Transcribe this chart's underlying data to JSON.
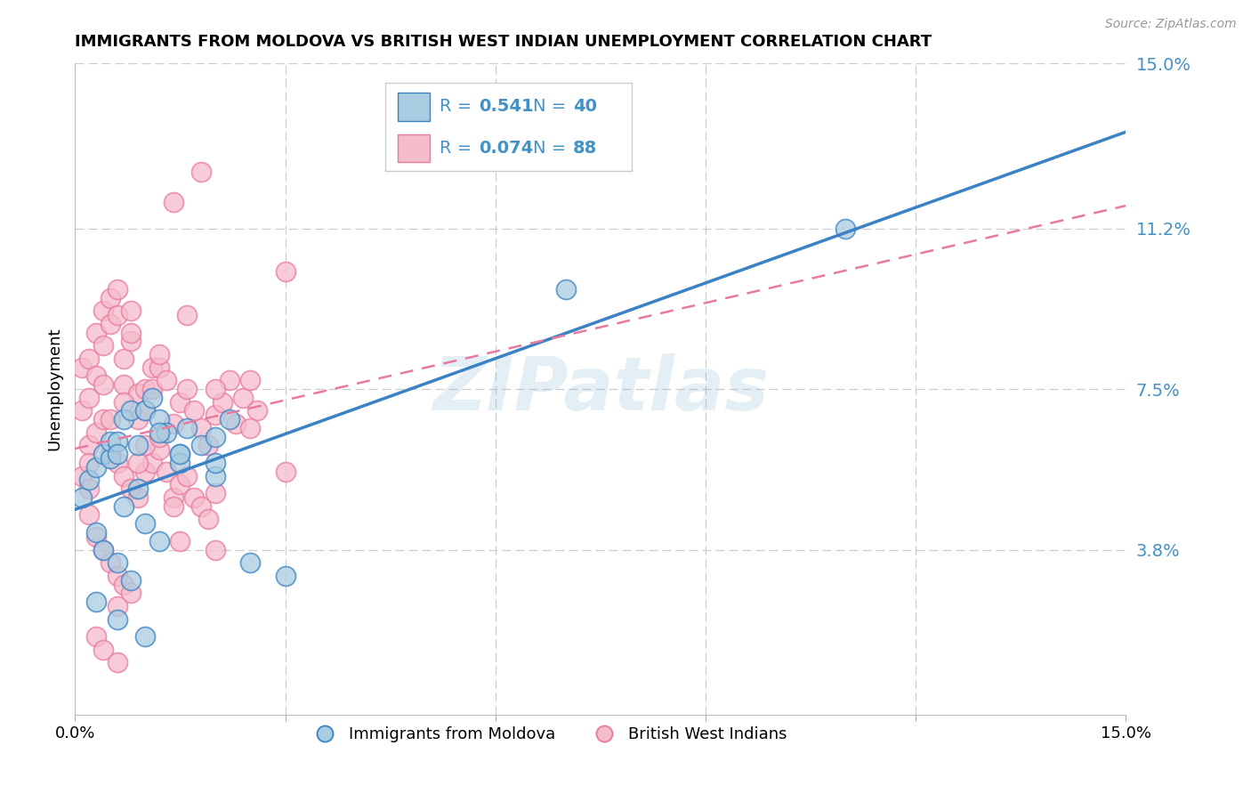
{
  "title": "IMMIGRANTS FROM MOLDOVA VS BRITISH WEST INDIAN UNEMPLOYMENT CORRELATION CHART",
  "source": "Source: ZipAtlas.com",
  "ylabel": "Unemployment",
  "x_min": 0.0,
  "x_max": 0.15,
  "y_min": 0.0,
  "y_max": 0.15,
  "ytick_values": [
    0.038,
    0.075,
    0.112,
    0.15
  ],
  "ytick_labels": [
    "3.8%",
    "7.5%",
    "11.2%",
    "15.0%"
  ],
  "xtick_values": [
    0.0,
    0.03,
    0.06,
    0.09,
    0.12,
    0.15
  ],
  "xtick_labels": [
    "0.0%",
    "",
    "",
    "",
    "",
    "15.0%"
  ],
  "watermark": "ZIPatlas",
  "blue_fill": "#a8cce0",
  "blue_edge": "#3b82c4",
  "pink_fill": "#f5bccb",
  "pink_edge": "#e87aa0",
  "blue_line_color": "#3b82c4",
  "pink_line_color": "#e87aa0",
  "legend_r_blue": "0.541",
  "legend_n_blue": "40",
  "legend_r_pink": "0.074",
  "legend_n_pink": "88",
  "legend_label_blue": "Immigrants from Moldova",
  "legend_label_pink": "British West Indians",
  "text_blue": "#4292c6",
  "blue_x": [
    0.001,
    0.002,
    0.003,
    0.004,
    0.005,
    0.005,
    0.006,
    0.006,
    0.007,
    0.008,
    0.009,
    0.01,
    0.011,
    0.012,
    0.013,
    0.015,
    0.016,
    0.018,
    0.02,
    0.022,
    0.003,
    0.004,
    0.006,
    0.008,
    0.01,
    0.012,
    0.015,
    0.02,
    0.025,
    0.03,
    0.007,
    0.009,
    0.012,
    0.015,
    0.02,
    0.003,
    0.006,
    0.01,
    0.07,
    0.11
  ],
  "blue_y": [
    0.05,
    0.054,
    0.057,
    0.06,
    0.059,
    0.063,
    0.063,
    0.06,
    0.068,
    0.07,
    0.062,
    0.07,
    0.073,
    0.068,
    0.065,
    0.06,
    0.066,
    0.062,
    0.064,
    0.068,
    0.042,
    0.038,
    0.035,
    0.031,
    0.044,
    0.04,
    0.058,
    0.055,
    0.035,
    0.032,
    0.048,
    0.052,
    0.065,
    0.06,
    0.058,
    0.026,
    0.022,
    0.018,
    0.098,
    0.112
  ],
  "pink_x": [
    0.001,
    0.001,
    0.002,
    0.002,
    0.003,
    0.003,
    0.004,
    0.004,
    0.005,
    0.005,
    0.006,
    0.006,
    0.007,
    0.007,
    0.008,
    0.008,
    0.009,
    0.009,
    0.01,
    0.01,
    0.011,
    0.011,
    0.012,
    0.012,
    0.013,
    0.014,
    0.015,
    0.016,
    0.017,
    0.018,
    0.019,
    0.02,
    0.021,
    0.022,
    0.023,
    0.024,
    0.025,
    0.026,
    0.002,
    0.003,
    0.004,
    0.005,
    0.006,
    0.007,
    0.008,
    0.009,
    0.01,
    0.011,
    0.012,
    0.013,
    0.014,
    0.015,
    0.016,
    0.017,
    0.018,
    0.019,
    0.02,
    0.001,
    0.002,
    0.003,
    0.004,
    0.005,
    0.006,
    0.007,
    0.008,
    0.02,
    0.025,
    0.03,
    0.014,
    0.03,
    0.016,
    0.018,
    0.003,
    0.004,
    0.006,
    0.002,
    0.002,
    0.01,
    0.015,
    0.02,
    0.005,
    0.007,
    0.009,
    0.012,
    0.014,
    0.008,
    0.004,
    0.006
  ],
  "pink_y": [
    0.07,
    0.08,
    0.073,
    0.082,
    0.078,
    0.088,
    0.085,
    0.093,
    0.09,
    0.096,
    0.098,
    0.092,
    0.082,
    0.076,
    0.086,
    0.093,
    0.074,
    0.068,
    0.075,
    0.07,
    0.075,
    0.08,
    0.08,
    0.083,
    0.077,
    0.067,
    0.072,
    0.075,
    0.07,
    0.066,
    0.062,
    0.069,
    0.072,
    0.077,
    0.067,
    0.073,
    0.077,
    0.07,
    0.062,
    0.065,
    0.068,
    0.06,
    0.058,
    0.055,
    0.052,
    0.05,
    0.056,
    0.058,
    0.061,
    0.056,
    0.05,
    0.053,
    0.055,
    0.05,
    0.048,
    0.045,
    0.051,
    0.055,
    0.046,
    0.041,
    0.038,
    0.035,
    0.032,
    0.03,
    0.028,
    0.075,
    0.066,
    0.056,
    0.118,
    0.102,
    0.092,
    0.125,
    0.018,
    0.015,
    0.012,
    0.058,
    0.052,
    0.062,
    0.04,
    0.038,
    0.068,
    0.072,
    0.058,
    0.064,
    0.048,
    0.088,
    0.076,
    0.025
  ]
}
